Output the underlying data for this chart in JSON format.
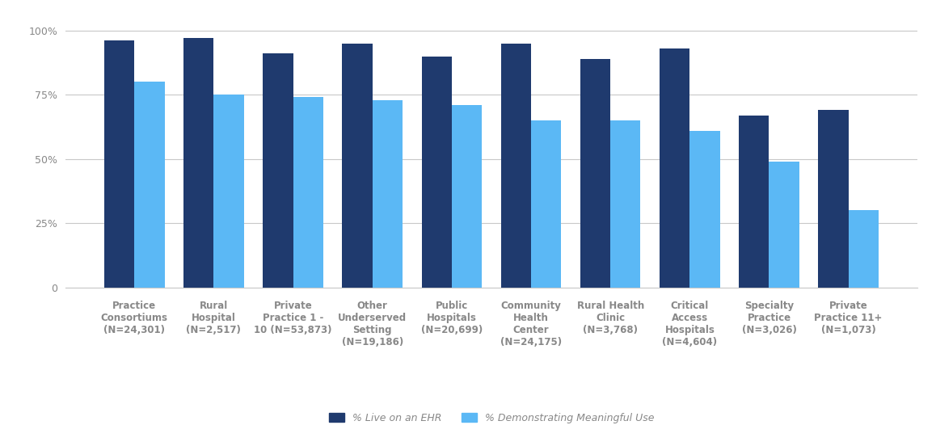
{
  "categories": [
    "Practice\nConsortiums\n(N=24,301)",
    "Rural\nHospital\n(N=2,517)",
    "Private\nPractice 1 -\n10 (N=53,873)",
    "Other\nUnderserved\nSetting\n(N=19,186)",
    "Public\nHospitals\n(N=20,699)",
    "Community\nHealth\nCenter\n(N=24,175)",
    "Rural Health\nClinic\n(N=3,768)",
    "Critical\nAccess\nHospitals\n(N=4,604)",
    "Specialty\nPractice\n(N=3,026)",
    "Private\nPractice 11+\n(N=1,073)"
  ],
  "ehr_values": [
    96,
    97,
    91,
    95,
    90,
    95,
    89,
    93,
    67,
    69
  ],
  "mu_values": [
    80,
    75,
    74,
    73,
    71,
    65,
    65,
    61,
    49,
    30
  ],
  "ehr_color": "#1F3A6E",
  "mu_color": "#5BB8F5",
  "background_color": "#FFFFFF",
  "grid_color": "#C8C8C8",
  "axis_label_color": "#888888",
  "legend_ehr": "% Live on an EHR",
  "legend_mu": "% Demonstrating Meaningful Use",
  "yticks": [
    0,
    25,
    50,
    75,
    100
  ],
  "ytick_labels": [
    "0",
    "25%",
    "50%",
    "75%",
    "100%"
  ],
  "ylim": [
    0,
    105
  ],
  "bar_width": 0.38,
  "figsize": [
    11.58,
    5.47
  ],
  "dpi": 100
}
